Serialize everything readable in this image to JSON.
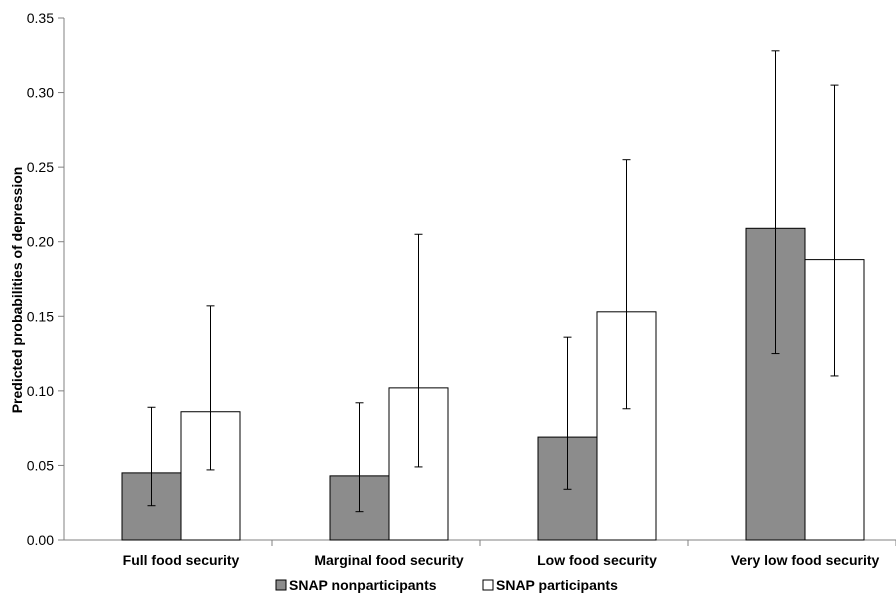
{
  "chart_data": {
    "type": "bar",
    "title": "",
    "xlabel": "",
    "ylabel": "Predicted probabilities of depression",
    "ylim": [
      0,
      0.35
    ],
    "yticks": [
      "0.00",
      "0.05",
      "0.10",
      "0.15",
      "0.20",
      "0.25",
      "0.30",
      "0.35"
    ],
    "categories": [
      "Full food security",
      "Marginal food security",
      "Low food security",
      "Very low food security"
    ],
    "series": [
      {
        "name": "SNAP nonparticipants",
        "color": "#8c8c8c",
        "values": [
          0.045,
          0.043,
          0.069,
          0.209
        ],
        "ci_low": [
          0.023,
          0.019,
          0.034,
          0.125
        ],
        "ci_high": [
          0.089,
          0.092,
          0.136,
          0.328
        ]
      },
      {
        "name": "SNAP participants",
        "color": "#ffffff",
        "values": [
          0.086,
          0.102,
          0.153,
          0.188
        ],
        "ci_low": [
          0.047,
          0.049,
          0.088,
          0.11
        ],
        "ci_high": [
          0.157,
          0.205,
          0.255,
          0.305
        ]
      }
    ],
    "grid": false,
    "legend": "bottom"
  }
}
